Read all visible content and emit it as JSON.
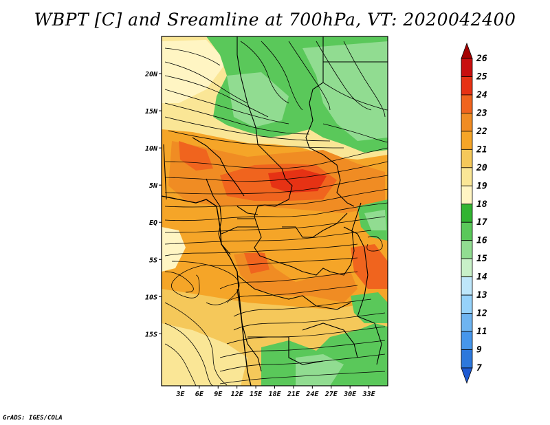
{
  "title": "WBPT [C] and Sreamline at 700hPa, VT: 2020042400",
  "credit": "GrADS: IGES/COLA",
  "map": {
    "lon_range": [
      0,
      36
    ],
    "lat_range": [
      -22,
      25
    ],
    "lon_labels": [
      {
        "lon": 3,
        "text": "3E"
      },
      {
        "lon": 6,
        "text": "6E"
      },
      {
        "lon": 9,
        "text": "9E"
      },
      {
        "lon": 12,
        "text": "12E"
      },
      {
        "lon": 15,
        "text": "15E"
      },
      {
        "lon": 18,
        "text": "18E"
      },
      {
        "lon": 21,
        "text": "21E"
      },
      {
        "lon": 24,
        "text": "24E"
      },
      {
        "lon": 27,
        "text": "27E"
      },
      {
        "lon": 30,
        "text": "30E"
      },
      {
        "lon": 33,
        "text": "33E"
      }
    ],
    "lat_labels": [
      {
        "lat": 20,
        "text": "20N"
      },
      {
        "lat": 15,
        "text": "15N"
      },
      {
        "lat": 10,
        "text": "10N"
      },
      {
        "lat": 5,
        "text": "5N"
      },
      {
        "lat": 0,
        "text": "EQ"
      },
      {
        "lat": -5,
        "text": "5S"
      },
      {
        "lat": -10,
        "text": "10S"
      },
      {
        "lat": -15,
        "text": "15S"
      }
    ]
  },
  "colorbar": {
    "labels": [
      "26",
      "25",
      "24",
      "23",
      "22",
      "21",
      "20",
      "19",
      "18",
      "17",
      "16",
      "15",
      "14",
      "13",
      "12",
      "11",
      "9",
      "7"
    ],
    "colors": [
      "#a50000",
      "#c80f0f",
      "#e63214",
      "#f0641e",
      "#f08c23",
      "#f5a528",
      "#f5c85a",
      "#fae696",
      "#fff5c3",
      "#32b432",
      "#5ac85a",
      "#91dc91",
      "#c8f0c8",
      "#bee6fa",
      "#96d2fa",
      "#6eb4f0",
      "#4696eb",
      "#2d78dc",
      "#1e5ad2"
    ],
    "under_color": "#1e5ad2"
  }
}
